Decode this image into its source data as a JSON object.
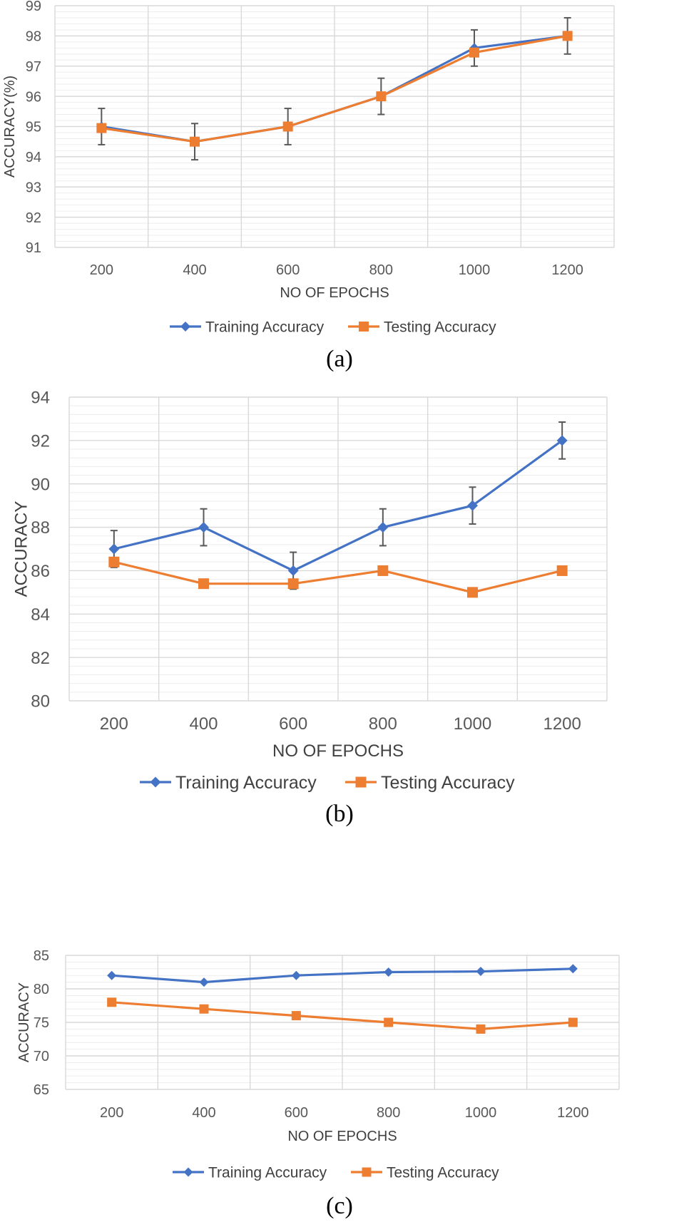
{
  "colors": {
    "training": "#4472C4",
    "testing": "#ED7D31",
    "error_bar": "#595959",
    "grid_major": "#D9D9D9",
    "grid_minor": "#EDEDED"
  },
  "chart_data": [
    {
      "type": "line",
      "caption": "(a)",
      "xlabel": "NO OF EPOCHS",
      "ylabel": "ACCURACY(%)",
      "categories": [
        "200",
        "400",
        "600",
        "800",
        "1000",
        "1200"
      ],
      "ylim": [
        91,
        99
      ],
      "yticks": [
        "91",
        "92",
        "93",
        "94",
        "95",
        "96",
        "97",
        "98",
        "99"
      ],
      "error_bars": true,
      "error": 0.6,
      "legend": "bottom",
      "series": [
        {
          "name": "Training Accuracy",
          "values": [
            95.0,
            94.5,
            95.0,
            96.0,
            97.6,
            98.0
          ]
        },
        {
          "name": "Testing Accuracy",
          "values": [
            94.95,
            94.5,
            95.0,
            96.0,
            97.45,
            98.0
          ]
        }
      ]
    },
    {
      "type": "line",
      "caption": "(b)",
      "xlabel": "NO OF EPOCHS",
      "ylabel": "ACCURACY",
      "categories": [
        "200",
        "400",
        "600",
        "800",
        "1000",
        "1200"
      ],
      "ylim": [
        80,
        94
      ],
      "yticks": [
        "80",
        "82",
        "84",
        "86",
        "88",
        "90",
        "92",
        "94"
      ],
      "error_bars": true,
      "error": 0.85,
      "legend": "bottom",
      "series": [
        {
          "name": "Training Accuracy",
          "values": [
            87,
            88,
            86,
            88,
            89,
            92
          ]
        },
        {
          "name": "Testing Accuracy",
          "values": [
            86.4,
            85.4,
            85.4,
            86,
            85,
            86
          ]
        }
      ]
    },
    {
      "type": "line",
      "caption": "(c)",
      "xlabel": "NO OF EPOCHS",
      "ylabel": "ACCURACY",
      "categories": [
        "200",
        "400",
        "600",
        "800",
        "1000",
        "1200"
      ],
      "ylim": [
        65,
        85
      ],
      "yticks": [
        "65",
        "70",
        "75",
        "80",
        "85"
      ],
      "error_bars": false,
      "legend": "bottom",
      "series": [
        {
          "name": "Training Accuracy",
          "values": [
            82,
            81,
            82,
            82.5,
            82.6,
            83
          ]
        },
        {
          "name": "Testing Accuracy",
          "values": [
            78,
            77,
            76,
            75,
            74,
            75
          ]
        }
      ]
    }
  ]
}
